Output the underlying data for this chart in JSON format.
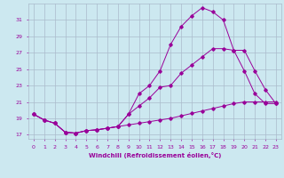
{
  "xlabel": "Windchill (Refroidissement éolien,°C)",
  "bg_color": "#cce8f0",
  "grid_color": "#aabbcc",
  "line_color": "#990099",
  "xlim": [
    -0.5,
    23.5
  ],
  "ylim": [
    16.5,
    33.0
  ],
  "yticks": [
    17,
    19,
    21,
    23,
    25,
    27,
    29,
    31
  ],
  "xticks": [
    0,
    1,
    2,
    3,
    4,
    5,
    6,
    7,
    8,
    9,
    10,
    11,
    12,
    13,
    14,
    15,
    16,
    17,
    18,
    19,
    20,
    21,
    22,
    23
  ],
  "line1_x": [
    0,
    1,
    2,
    3,
    4,
    5,
    6,
    7,
    8,
    9,
    10,
    11,
    12,
    13,
    14,
    15,
    16,
    17,
    18,
    19,
    20,
    21,
    22,
    23
  ],
  "line1_y": [
    19.5,
    18.8,
    18.4,
    17.3,
    17.2,
    17.5,
    17.6,
    17.8,
    18.0,
    19.5,
    22.0,
    23.0,
    24.8,
    28.0,
    30.2,
    31.5,
    32.5,
    32.0,
    31.0,
    27.3,
    24.8,
    22.0,
    20.8,
    20.8
  ],
  "line2_x": [
    0,
    1,
    2,
    3,
    4,
    5,
    6,
    7,
    8,
    9,
    10,
    11,
    12,
    13,
    14,
    15,
    16,
    17,
    18,
    19,
    20,
    21,
    22,
    23
  ],
  "line2_y": [
    19.5,
    18.8,
    18.4,
    17.3,
    17.2,
    17.5,
    17.6,
    17.8,
    18.0,
    18.2,
    18.4,
    18.6,
    18.8,
    19.0,
    19.3,
    19.6,
    19.9,
    20.2,
    20.5,
    20.8,
    21.0,
    21.0,
    21.0,
    21.0
  ],
  "line3_x": [
    0,
    1,
    2,
    3,
    4,
    5,
    6,
    7,
    8,
    9,
    10,
    11,
    12,
    13,
    14,
    15,
    16,
    17,
    18,
    19,
    20,
    21,
    22,
    23
  ],
  "line3_y": [
    19.5,
    18.8,
    18.4,
    17.3,
    17.2,
    17.5,
    17.6,
    17.8,
    18.0,
    19.5,
    20.5,
    21.5,
    22.8,
    23.0,
    24.5,
    25.5,
    26.5,
    27.5,
    27.5,
    27.3,
    27.3,
    24.8,
    22.5,
    20.8
  ]
}
